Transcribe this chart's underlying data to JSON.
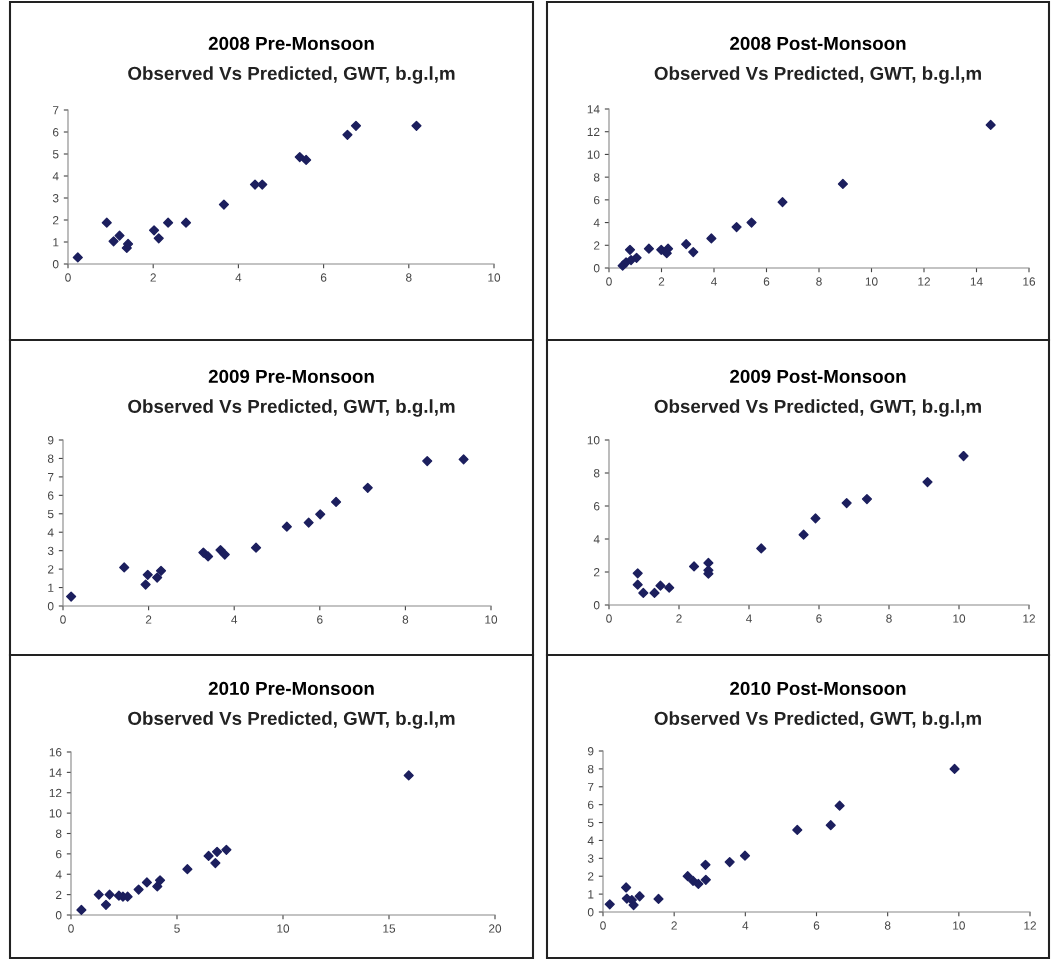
{
  "chart_data": [
    {
      "type": "scatter",
      "title": "2008 Pre-Monsoon",
      "subtitle": "Observed Vs Predicted, GWT, b.g.l,m",
      "marker": "diamond",
      "grid": false,
      "xlim": [
        0,
        10
      ],
      "xticks": [
        0,
        2,
        4,
        6,
        8,
        10
      ],
      "ylim": [
        0,
        7
      ],
      "yticks": [
        0,
        1,
        2,
        3,
        4,
        5,
        6,
        7
      ],
      "series": [
        {
          "color": "#1c1f5e",
          "x": [
            0.23,
            0.91,
            1.07,
            1.21,
            1.38,
            1.41,
            2.02,
            2.13,
            2.35,
            2.77,
            3.66,
            4.39,
            4.56,
            5.44,
            5.59,
            6.56,
            6.76,
            8.18
          ],
          "values": [
            0.3,
            1.88,
            1.03,
            1.29,
            0.73,
            0.91,
            1.53,
            1.17,
            1.88,
            1.88,
            2.7,
            3.61,
            3.61,
            4.86,
            4.73,
            5.87,
            6.28,
            6.28
          ]
        }
      ]
    },
    {
      "type": "scatter",
      "title": "2008 Post-Monsoon",
      "subtitle": "Observed Vs Predicted, GWT, b.g.l,m",
      "marker": "diamond",
      "grid": false,
      "xlim": [
        0,
        16
      ],
      "xticks": [
        0,
        2,
        4,
        6,
        8,
        10,
        12,
        14,
        16
      ],
      "ylim": [
        0,
        14
      ],
      "yticks": [
        0,
        2,
        4,
        6,
        8,
        10,
        12,
        14
      ],
      "series": [
        {
          "color": "#1c1f5e",
          "x": [
            0.52,
            0.65,
            0.8,
            0.84,
            1.05,
            1.52,
            1.99,
            2.2,
            2.25,
            2.94,
            3.21,
            3.9,
            4.86,
            5.43,
            6.61,
            8.91,
            14.54
          ],
          "values": [
            0.2,
            0.5,
            1.6,
            0.7,
            0.9,
            1.7,
            1.6,
            1.3,
            1.7,
            2.1,
            1.4,
            2.6,
            3.6,
            4.0,
            5.8,
            7.4,
            12.6
          ]
        }
      ]
    },
    {
      "type": "scatter",
      "title": "2009 Pre-Monsoon",
      "subtitle": "Observed Vs Predicted, GWT, b.g.l,m",
      "marker": "diamond",
      "grid": false,
      "xlim": [
        0,
        10
      ],
      "xticks": [
        0,
        2,
        4,
        6,
        8,
        10
      ],
      "ylim": [
        0,
        9
      ],
      "yticks": [
        0,
        1,
        2,
        3,
        4,
        5,
        6,
        7,
        8,
        9
      ],
      "series": [
        {
          "color": "#1c1f5e",
          "x": [
            0.19,
            1.43,
            1.93,
            1.98,
            2.2,
            2.29,
            3.28,
            3.39,
            3.68,
            3.78,
            4.51,
            5.23,
            5.74,
            6.01,
            6.38,
            7.12,
            8.51,
            9.36
          ],
          "values": [
            0.51,
            2.09,
            1.16,
            1.69,
            1.54,
            1.91,
            2.9,
            2.69,
            3.03,
            2.79,
            3.16,
            4.3,
            4.52,
            4.97,
            5.64,
            6.41,
            7.86,
            7.95
          ]
        }
      ]
    },
    {
      "type": "scatter",
      "title": "2009 Post-Monsoon",
      "subtitle": "Observed Vs Predicted, GWT, b.g.l,m",
      "marker": "diamond",
      "grid": false,
      "xlim": [
        0,
        12
      ],
      "xticks": [
        0,
        2,
        4,
        6,
        8,
        10,
        12
      ],
      "ylim": [
        0,
        10
      ],
      "yticks": [
        0,
        2,
        4,
        6,
        8,
        10
      ],
      "series": [
        {
          "color": "#1c1f5e",
          "x": [
            0.82,
            0.82,
            0.98,
            1.3,
            1.47,
            1.72,
            2.43,
            2.84,
            2.84,
            2.84,
            4.35,
            5.56,
            5.9,
            6.79,
            7.37,
            9.1,
            10.13
          ],
          "values": [
            1.92,
            1.23,
            0.73,
            0.73,
            1.17,
            1.05,
            2.34,
            2.55,
            2.1,
            1.9,
            3.43,
            4.26,
            5.25,
            6.18,
            6.42,
            7.45,
            9.03
          ]
        }
      ]
    },
    {
      "type": "scatter",
      "title": "2010 Pre-Monsoon",
      "subtitle": "Observed Vs Predicted, GWT, b.g.l,m",
      "marker": "diamond",
      "grid": false,
      "xlim": [
        0,
        20
      ],
      "xticks": [
        0,
        5,
        10,
        15,
        20
      ],
      "ylim": [
        0,
        16
      ],
      "yticks": [
        0,
        2,
        4,
        6,
        8,
        10,
        12,
        14,
        16
      ],
      "series": [
        {
          "color": "#1c1f5e",
          "x": [
            0.49,
            1.31,
            1.65,
            1.82,
            2.26,
            2.45,
            2.67,
            3.19,
            3.58,
            4.07,
            4.2,
            5.49,
            6.49,
            6.81,
            6.89,
            7.33,
            15.93
          ],
          "values": [
            0.5,
            2.0,
            1.0,
            2.0,
            1.9,
            1.8,
            1.8,
            2.5,
            3.2,
            2.8,
            3.4,
            4.5,
            5.8,
            5.1,
            6.2,
            6.4,
            13.7
          ]
        }
      ]
    },
    {
      "type": "scatter",
      "title": "2010 Post-Monsoon",
      "subtitle": "Observed Vs Predicted, GWT, b.g.l,m",
      "marker": "diamond",
      "grid": false,
      "xlim": [
        0,
        12
      ],
      "xticks": [
        0,
        2,
        4,
        6,
        8,
        10,
        12
      ],
      "ylim": [
        0,
        9
      ],
      "yticks": [
        0,
        1,
        2,
        3,
        4,
        5,
        6,
        7,
        8,
        9
      ],
      "series": [
        {
          "color": "#1c1f5e",
          "x": [
            0.19,
            0.65,
            0.67,
            0.81,
            0.86,
            1.03,
            1.56,
            2.38,
            2.53,
            2.68,
            2.88,
            2.89,
            3.56,
            3.99,
            5.46,
            6.4,
            6.65,
            9.88
          ],
          "values": [
            0.43,
            1.37,
            0.75,
            0.67,
            0.39,
            0.88,
            0.73,
            2.0,
            1.74,
            1.57,
            2.64,
            1.8,
            2.79,
            3.15,
            4.59,
            4.85,
            5.94,
            8.0
          ]
        }
      ]
    }
  ]
}
